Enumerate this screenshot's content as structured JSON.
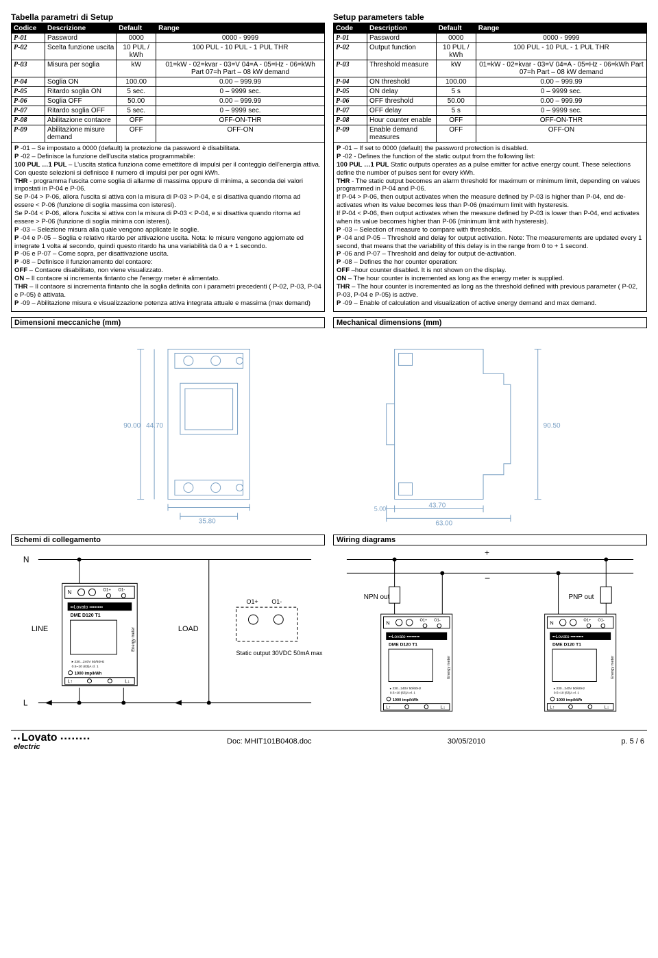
{
  "left": {
    "title": "Tabella parametri di Setup",
    "headers": [
      "Codice",
      "Descrizione",
      "Default",
      "Range"
    ],
    "rows": [
      [
        "P-01",
        "Password",
        "0000",
        "0000 - 9999"
      ],
      [
        "P-02",
        "Scelta funzione uscita",
        "10 PUL / kWh",
        "100 PUL - 10 PUL - 1 PUL THR"
      ],
      [
        "P-03",
        "Misura per soglia",
        "kW",
        "01=kW - 02=kvar - 03=V 04=A - 05=Hz - 06=kWh Part 07=h Part – 08 kW demand"
      ],
      [
        "P-04",
        "Soglia ON",
        "100.00",
        "0.00 – 999.99"
      ],
      [
        "P-05",
        "Ritardo soglia ON",
        "5 sec.",
        "0 – 9999 sec."
      ],
      [
        "P-06",
        "Soglia OFF",
        "50.00",
        "0.00 – 999.99"
      ],
      [
        "P-07",
        "Ritardo soglia OFF",
        "5 sec.",
        "0 – 9999 sec."
      ],
      [
        "P-08",
        "Abilitazione contaore",
        "OFF",
        "OFF-ON-THR"
      ],
      [
        "P-09",
        "Abilitazione misure demand",
        "OFF",
        "OFF-ON"
      ]
    ],
    "desc": "P-01 – Se impostato a 0000 (default) la protezione da password è disabilitata.|P-02 – Definisce la funzione dell'uscita statica programmabile:|100 PUL …1 PUL – L'uscita statica funziona come emettitore di impulsi per il conteggio dell'energia attiva. Con queste selezioni si definisce il numero di impulsi per per ogni kWh.|THR - programma l'uscita come soglia di allarme di massima oppure di minima, a seconda dei valori impostati in P-04 e P-06.|Se P-04 > P-06, allora l'uscita si attiva con la misura di P-03 > P-04, e si disattiva quando ritorna ad essere < P-06 (funzione di soglia massima con isteresi).|Se P-04 < P-06, allora l'uscita si attiva con la misura di P-03 < P-04, e si disattiva quando ritorna ad essere > P-06 (funzione di soglia minima con isteresi).|P-03 – Selezione misura alla quale vengono applicate le soglie.|P-04 e P-05 – Soglia e relativo ritardo per attivazione uscita. Nota: le misure vengono aggiornate ed integrate 1 volta al secondo, quindi questo ritardo ha una variabilità da 0 a + 1 secondo.|P-06 e P-07 – Come sopra, per disattivazione uscita.|P-08 – Definisce il funzionamento del contaore:|OFF – Contaore disabilitato, non viene visualizzato.|ON – Il contaore si incrementa fintanto che l'energy meter è alimentato.|THR – Il contaore si incrementa fintanto che la soglia definita con i parametri precedenti ( P-02, P-03, P-04 e P-05) è attivata.|P-09 – Abilitazione misura e visualizzazione potenza attiva integrata attuale e massima (max demand)"
  },
  "right": {
    "title": "Setup parameters table",
    "headers": [
      "Code",
      "Description",
      "Default",
      "Range"
    ],
    "rows": [
      [
        "P-01",
        "Password",
        "0000",
        "0000 - 9999"
      ],
      [
        "P-02",
        "Output function",
        "10 PUL / kWh",
        "100 PUL - 10 PUL - 1 PUL THR"
      ],
      [
        "P-03",
        "Threshold measure",
        "kW",
        "01=kW - 02=kvar - 03=V 04=A - 05=Hz - 06=kWh Part 07=h Part – 08 kW demand"
      ],
      [
        "P-04",
        "ON threshold",
        "100.00",
        "0.00 – 999.99"
      ],
      [
        "P-05",
        "ON delay",
        "5 s",
        "0 – 9999 sec."
      ],
      [
        "P-06",
        "OFF threshold",
        "50.00",
        "0.00 – 999.99"
      ],
      [
        "P-07",
        "OFF delay",
        "5 s",
        "0 – 9999 sec."
      ],
      [
        "P-08",
        "Hour counter enable",
        "OFF",
        "OFF-ON-THR"
      ],
      [
        "P-09",
        "Enable demand measures",
        "OFF",
        "OFF-ON"
      ]
    ],
    "desc": "P-01 – If set to 0000 (default) the password protection is disabled.|P-02 - Defines the function of the static output from the following list:|100 PUL …1 PUL Static outputs operates as a  pulse emitter for  active energy count.  These selections define the number of pulses sent for every kWh.|THR - The static output becomes an alarm threshold for maximum or minimum limit, depending on values programmed in P-04 and P-06.| If P-04 > P-06, then output activates when the measure defined by P-03 is higher than P-04, end de-activates when its value becomes less than P-06 (maximum limit with hysteresis.|If P-04 < P-06, then output activates when the measure defined by P-03 is lower than P-04, end activates when its value becomes higher than P-06 (minimum limit with hysteresis).|P-03 – Selection of measure to compare with thresholds.|P-04 and P-05 – Threshold and delay for output activation. Note: The measurements are updated every 1 second, that means that the variability of this delay  is in the range from 0 to + 1 second.|P-06 and P-07 – Threshold and delay for output de-activation.|P-08 – Defines the hor counter operation:|OFF –hour counter disabled. It is not shown on the display.|ON – The hour counter is incremented as long as the energy meter is supplied.|THR – The hour counter is incremented as long as the threshold defined with previous parameter ( P-02, P-03, P-04 e P-05) is active.|P-09 – Enable of calculation and visualization of active energy demand and max demand."
  },
  "dimsTitleLeft": "Dimensioni meccaniche (mm)",
  "dimsTitleRight": "Mechanical dimensions (mm)",
  "dims": {
    "h": "90.00",
    "w1": "44.70",
    "w2": "35.80",
    "h2": "90.50",
    "d1": "5.00",
    "d2": "43.70",
    "d3": "63.00"
  },
  "wiringTitleLeft": "Schemi di collegamento",
  "wiringTitleRight": "Wiring diagrams",
  "wiring": {
    "N": "N",
    "L": "L",
    "LINE": "LINE",
    "LOAD": "LOAD",
    "O1p": "O1+",
    "O1n": "O1-",
    "static": "Static output 30VDC 50mA max",
    "npn": "NPN out",
    "pnp": "PNP out",
    "plus": "+",
    "minus": "−",
    "dev": "DME D120 T1",
    "brand": "Lovato",
    "spec1": "230...240V 50/60Hz",
    "spec2": "0.5~10 (63)A cl. 1",
    "imp": "1000 imp/kWh",
    "meter": "Energy meter",
    "Lp": "L↑",
    "Ln": "L↓"
  },
  "footer": {
    "doc": "Doc: MHIT101B0408.doc",
    "date": "30/05/2010",
    "page": "p. 5 / 6",
    "brandMain": "Lovato",
    "brandSub": "electric"
  }
}
